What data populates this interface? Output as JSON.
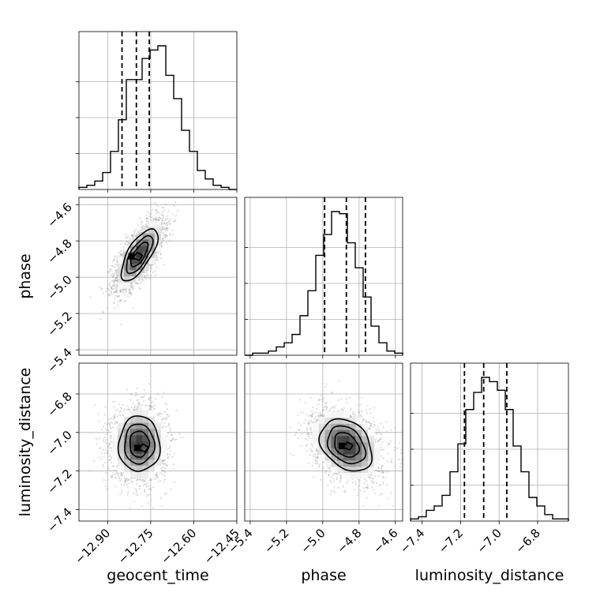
{
  "chart_data": {
    "type": "corner",
    "parameters": [
      "geocent_time",
      "phase",
      "luminosity_distance"
    ],
    "axis_labels": {
      "bottom": [
        "geocent_time",
        "phase",
        "luminosity_distance"
      ],
      "left": [
        "",
        "phase",
        "luminosity_distance"
      ]
    },
    "ranges": {
      "geocent_time": [
        -13.0,
        -12.45
      ],
      "phase": [
        -5.43,
        -4.56
      ],
      "luminosity_distance": [
        -7.46,
        -6.64
      ]
    },
    "ticks": {
      "geocent_time": [
        -12.9,
        -12.75,
        -12.6,
        -12.45
      ],
      "phase": [
        -5.4,
        -5.2,
        -5.0,
        -4.8,
        -4.6
      ],
      "luminosity_distance": [
        -7.4,
        -7.2,
        -7.0,
        -6.8
      ]
    },
    "tick_labels": {
      "geocent_time": [
        "−12.90",
        "−12.75",
        "−12.60",
        "−12.45"
      ],
      "phase": [
        "−5.4",
        "−5.2",
        "−5.0",
        "−4.8",
        "−4.6"
      ],
      "luminosity_distance": [
        "−7.4",
        "−7.2",
        "−7.0",
        "−6.8"
      ]
    },
    "quantiles": {
      "geocent_time": [
        -12.85,
        -12.8,
        -12.755
      ],
      "phase": [
        -4.99,
        -4.87,
        -4.765
      ],
      "luminosity_distance": [
        -7.18,
        -7.08,
        -6.96
      ]
    },
    "histograms": {
      "geocent_time": {
        "range": [
          -13.0,
          -12.45
        ],
        "counts": [
          1,
          2,
          4,
          8,
          18,
          33,
          52,
          52,
          62,
          66,
          68,
          54,
          43,
          28,
          18,
          9,
          5,
          2,
          1,
          0
        ]
      },
      "phase": {
        "range": [
          -5.43,
          -4.56
        ],
        "counts": [
          0,
          1,
          1,
          2,
          4,
          6,
          10,
          19,
          31,
          48,
          58,
          69,
          68,
          54,
          42,
          28,
          14,
          6,
          2,
          1
        ]
      },
      "luminosity_distance": {
        "range": [
          -7.46,
          -6.64
        ],
        "counts": [
          1,
          2,
          5,
          7,
          12,
          23,
          36,
          52,
          60,
          67,
          65,
          61,
          52,
          35,
          23,
          11,
          7,
          3,
          1,
          1
        ]
      }
    },
    "pairs": [
      {
        "x": "geocent_time",
        "y": "phase",
        "center": [
          -12.79,
          -4.875
        ],
        "sd": [
          0.04,
          0.09
        ],
        "corr": 0.7,
        "peak": [
          -12.795,
          -4.885
        ]
      },
      {
        "x": "geocent_time",
        "y": "luminosity_distance",
        "center": [
          -12.79,
          -7.06
        ],
        "sd": [
          0.045,
          0.09
        ],
        "corr": 0.0,
        "peak": [
          -12.775,
          -7.08
        ]
      },
      {
        "x": "phase",
        "y": "luminosity_distance",
        "center": [
          -4.87,
          -7.065
        ],
        "sd": [
          0.09,
          0.085
        ],
        "corr": -0.3,
        "peak": [
          -4.86,
          -7.07
        ]
      }
    ],
    "contour_levels": [
      0.4,
      0.7,
      0.9
    ],
    "grid": true
  }
}
